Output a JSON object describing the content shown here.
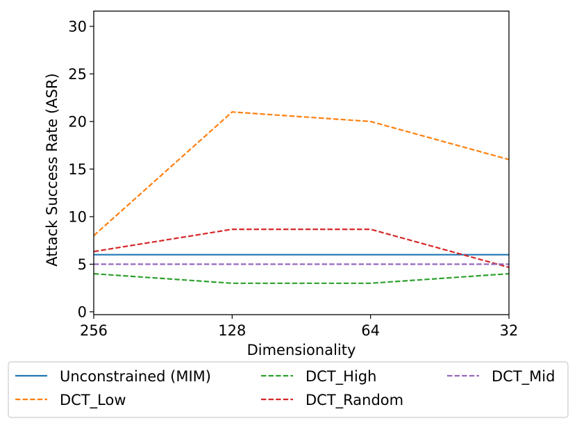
{
  "chart_data": {
    "type": "line",
    "title": "",
    "xlabel": "Dimensionality",
    "ylabel": "Attack Success Rate (ASR)",
    "categories": [
      "256",
      "128",
      "64",
      "32"
    ],
    "ylim": [
      -0.3,
      31.6
    ],
    "yticks": [
      0,
      5,
      10,
      15,
      20,
      25,
      30
    ],
    "grid": false,
    "legend_position": "bottom",
    "series": [
      {
        "name": "Unconstrained (MIM)",
        "color": "#1f77b4",
        "dash": "solid",
        "values": [
          6,
          6,
          6,
          6
        ]
      },
      {
        "name": "DCT_Low",
        "color": "#ff7f0e",
        "dash": "dashed",
        "values": [
          8,
          21,
          20,
          16
        ]
      },
      {
        "name": "DCT_High",
        "color": "#2ca02c",
        "dash": "dashed",
        "values": [
          4,
          3,
          3,
          4
        ]
      },
      {
        "name": "DCT_Random",
        "color": "#d62728",
        "dash": "dashed",
        "values": [
          6.33,
          8.67,
          8.67,
          4.67
        ]
      },
      {
        "name": "DCT_Mid",
        "color": "#9467bd",
        "dash": "dashed",
        "values": [
          5,
          5,
          5,
          5
        ]
      }
    ]
  }
}
